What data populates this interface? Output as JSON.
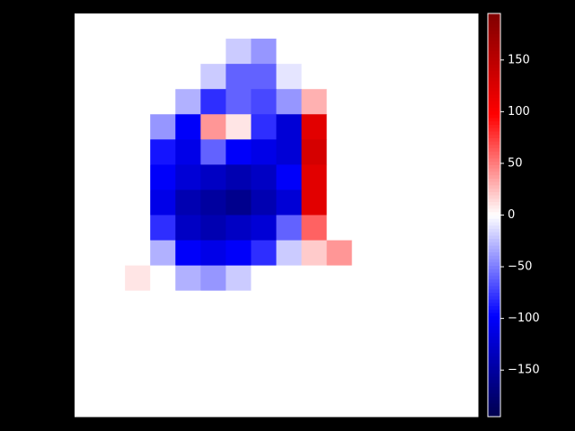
{
  "chart_data": {
    "type": "heatmap",
    "colormap": "seismic",
    "zlim": [
      -195,
      195
    ],
    "colorbar_ticks": [
      {
        "value": -150,
        "label": "−150"
      },
      {
        "value": -100,
        "label": "−100"
      },
      {
        "value": -50,
        "label": "−50"
      },
      0,
      50,
      100,
      150
    ],
    "z": [
      [
        0,
        0,
        0,
        0,
        0,
        0,
        0,
        0,
        0,
        0,
        0,
        0,
        0,
        0,
        0,
        0
      ],
      [
        0,
        0,
        0,
        0,
        0,
        0,
        -20,
        -40,
        0,
        0,
        0,
        0,
        0,
        0,
        0,
        0
      ],
      [
        0,
        0,
        0,
        0,
        0,
        -20,
        -60,
        -60,
        -10,
        0,
        0,
        0,
        0,
        0,
        0,
        0
      ],
      [
        0,
        0,
        0,
        0,
        -30,
        -80,
        -60,
        -70,
        -40,
        30,
        0,
        0,
        0,
        0,
        0,
        0
      ],
      [
        0,
        0,
        0,
        -40,
        -100,
        40,
        10,
        -80,
        -120,
        120,
        0,
        0,
        0,
        0,
        0,
        0
      ],
      [
        0,
        0,
        0,
        -90,
        -110,
        -60,
        -100,
        -110,
        -120,
        130,
        0,
        0,
        0,
        0,
        0,
        0
      ],
      [
        0,
        0,
        0,
        -100,
        -120,
        -130,
        -140,
        -130,
        -100,
        120,
        0,
        0,
        0,
        0,
        0,
        0
      ],
      [
        0,
        0,
        0,
        -110,
        -140,
        -150,
        -160,
        -140,
        -120,
        120,
        0,
        0,
        0,
        0,
        0,
        0
      ],
      [
        0,
        0,
        0,
        -80,
        -130,
        -140,
        -130,
        -120,
        -60,
        60,
        0,
        0,
        0,
        0,
        0,
        0
      ],
      [
        0,
        0,
        0,
        -30,
        -100,
        -110,
        -100,
        -80,
        -20,
        20,
        40,
        0,
        0,
        0,
        0,
        0
      ],
      [
        0,
        0,
        10,
        0,
        -30,
        -40,
        -20,
        0,
        0,
        0,
        0,
        0,
        0,
        0,
        0,
        0
      ],
      [
        0,
        0,
        0,
        0,
        0,
        0,
        0,
        0,
        0,
        0,
        0,
        0,
        0,
        0,
        0,
        0
      ],
      [
        0,
        0,
        0,
        0,
        0,
        0,
        0,
        0,
        0,
        0,
        0,
        0,
        0,
        0,
        0,
        0
      ],
      [
        0,
        0,
        0,
        0,
        0,
        0,
        0,
        0,
        0,
        0,
        0,
        0,
        0,
        0,
        0,
        0
      ],
      [
        0,
        0,
        0,
        0,
        0,
        0,
        0,
        0,
        0,
        0,
        0,
        0,
        0,
        0,
        0,
        0
      ],
      [
        0,
        0,
        0,
        0,
        0,
        0,
        0,
        0,
        0,
        0,
        0,
        0,
        0,
        0,
        0,
        0
      ]
    ]
  }
}
